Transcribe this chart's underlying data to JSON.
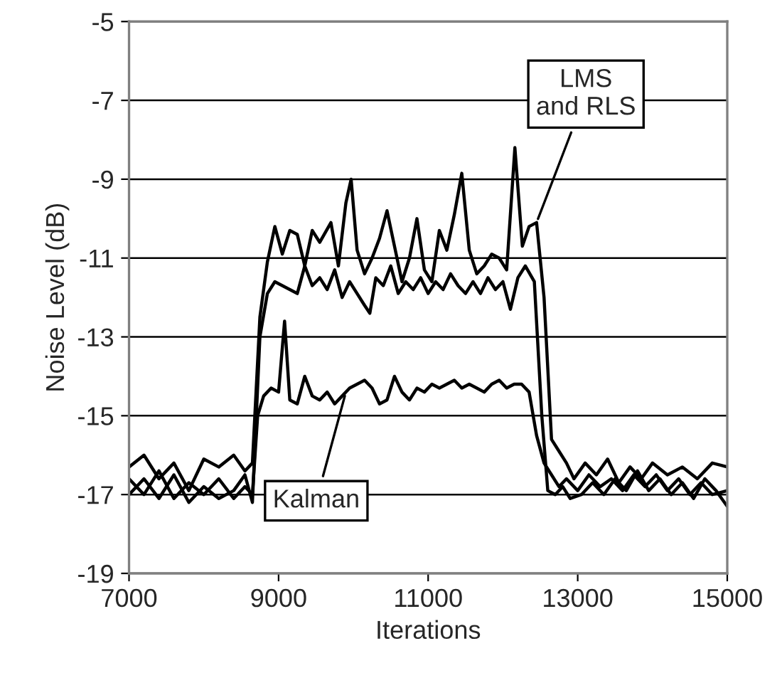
{
  "chart_data": {
    "type": "line",
    "xlabel": "Iterations",
    "ylabel": "Noise Level (dB)",
    "xlim": [
      7000,
      15000
    ],
    "xticks": [
      7000,
      9000,
      11000,
      13000,
      15000
    ],
    "ylim": [
      -19,
      -5
    ],
    "yticks": [
      -19,
      -17,
      -15,
      -13,
      -11,
      -9,
      -7,
      -5
    ],
    "grid": "y",
    "legend": false,
    "marker": "none",
    "line_style": "solid",
    "annotations": [
      {
        "text": "LMS\nand RLS",
        "x": 12450,
        "y": -10.1
      },
      {
        "text": "Kalman",
        "x": 9900,
        "y": -14.4
      }
    ],
    "series": [
      {
        "color": "#000000",
        "x": [
          7000,
          7200,
          7400,
          7600,
          7800,
          8000,
          8200,
          8400,
          8550,
          8650,
          8750,
          8850,
          8950,
          9050,
          9150,
          9250,
          9350,
          9450,
          9550,
          9700,
          9800,
          9900,
          9970,
          10050,
          10150,
          10250,
          10350,
          10450,
          10550,
          10650,
          10750,
          10850,
          10950,
          11050,
          11150,
          11250,
          11350,
          11450,
          11550,
          11650,
          11750,
          11850,
          11950,
          12050,
          12160,
          12260,
          12350,
          12450,
          12550,
          12650,
          12750,
          12850,
          12950,
          13100,
          13250,
          13400,
          13550,
          13700,
          13850,
          14000,
          14200,
          14400,
          14600,
          14800,
          15000
        ],
        "values": [
          -16.3,
          -16.0,
          -16.6,
          -16.2,
          -16.9,
          -16.1,
          -16.3,
          -16.0,
          -16.4,
          -16.2,
          -12.5,
          -11.1,
          -10.2,
          -10.9,
          -10.3,
          -10.4,
          -11.2,
          -10.3,
          -10.6,
          -10.1,
          -11.2,
          -9.6,
          -9.0,
          -10.8,
          -11.4,
          -11.0,
          -10.5,
          -9.8,
          -10.7,
          -11.6,
          -11.0,
          -10.0,
          -11.3,
          -11.6,
          -10.3,
          -10.8,
          -9.9,
          -8.85,
          -10.8,
          -11.4,
          -11.2,
          -10.9,
          -11.0,
          -11.3,
          -8.2,
          -10.7,
          -10.2,
          -10.1,
          -12.0,
          -15.6,
          -15.9,
          -16.2,
          -16.6,
          -16.2,
          -16.5,
          -16.1,
          -16.7,
          -16.3,
          -16.6,
          -16.2,
          -16.5,
          -16.3,
          -16.6,
          -16.2,
          -16.3
        ]
      },
      {
        "color": "#000000",
        "x": [
          7000,
          7200,
          7400,
          7600,
          7800,
          8000,
          8200,
          8400,
          8550,
          8650,
          8750,
          8850,
          8950,
          9050,
          9150,
          9250,
          9350,
          9450,
          9550,
          9650,
          9750,
          9850,
          9950,
          10050,
          10150,
          10220,
          10300,
          10400,
          10500,
          10600,
          10700,
          10800,
          10900,
          11000,
          11100,
          11200,
          11300,
          11400,
          11500,
          11600,
          11700,
          11800,
          11900,
          12000,
          12100,
          12200,
          12300,
          12420,
          12520,
          12600,
          12700,
          12800,
          12900,
          13050,
          13200,
          13350,
          13500,
          13650,
          13800,
          13950,
          14100,
          14250,
          14400,
          14550,
          14700,
          14850,
          15000
        ],
        "values": [
          -17.0,
          -16.6,
          -17.1,
          -16.5,
          -17.2,
          -16.8,
          -17.1,
          -16.9,
          -16.5,
          -17.2,
          -13.0,
          -11.9,
          -11.6,
          -11.7,
          -11.8,
          -11.9,
          -11.2,
          -11.7,
          -11.5,
          -11.8,
          -11.3,
          -12.0,
          -11.6,
          -11.9,
          -12.2,
          -12.4,
          -11.5,
          -11.7,
          -11.2,
          -11.9,
          -11.6,
          -11.8,
          -11.5,
          -11.9,
          -11.6,
          -11.8,
          -11.4,
          -11.7,
          -11.9,
          -11.6,
          -11.9,
          -11.5,
          -11.8,
          -11.6,
          -12.3,
          -11.5,
          -11.2,
          -11.6,
          -15.0,
          -16.9,
          -17.0,
          -16.8,
          -17.1,
          -17.0,
          -16.7,
          -17.0,
          -16.6,
          -16.9,
          -16.4,
          -16.9,
          -16.6,
          -17.0,
          -16.7,
          -17.1,
          -16.6,
          -16.9,
          -17.3
        ]
      },
      {
        "color": "#000000",
        "x": [
          7000,
          7200,
          7400,
          7600,
          7800,
          8000,
          8200,
          8400,
          8550,
          8650,
          8720,
          8800,
          8900,
          9000,
          9080,
          9150,
          9250,
          9350,
          9450,
          9550,
          9650,
          9750,
          9850,
          9950,
          10050,
          10150,
          10250,
          10350,
          10450,
          10550,
          10650,
          10750,
          10850,
          10950,
          11050,
          11150,
          11250,
          11350,
          11450,
          11550,
          11650,
          11750,
          11850,
          11950,
          12050,
          12150,
          12250,
          12350,
          12450,
          12550,
          12650,
          12750,
          12850,
          13000,
          13150,
          13300,
          13450,
          13600,
          13750,
          13900,
          14050,
          14200,
          14350,
          14500,
          14650,
          14800,
          15000
        ],
        "values": [
          -16.6,
          -17.0,
          -16.4,
          -17.1,
          -16.7,
          -17.0,
          -16.6,
          -17.1,
          -16.8,
          -17.0,
          -15.0,
          -14.5,
          -14.3,
          -14.4,
          -12.6,
          -14.6,
          -14.7,
          -14.0,
          -14.5,
          -14.6,
          -14.4,
          -14.7,
          -14.5,
          -14.3,
          -14.2,
          -14.1,
          -14.3,
          -14.7,
          -14.6,
          -14.0,
          -14.4,
          -14.6,
          -14.3,
          -14.4,
          -14.2,
          -14.3,
          -14.2,
          -14.1,
          -14.3,
          -14.2,
          -14.3,
          -14.4,
          -14.2,
          -14.1,
          -14.3,
          -14.2,
          -14.2,
          -14.4,
          -15.5,
          -16.2,
          -16.5,
          -16.8,
          -16.6,
          -16.9,
          -16.5,
          -16.8,
          -16.6,
          -16.9,
          -16.5,
          -16.8,
          -16.5,
          -16.9,
          -16.6,
          -17.0,
          -16.7,
          -17.0,
          -16.9
        ]
      }
    ]
  }
}
